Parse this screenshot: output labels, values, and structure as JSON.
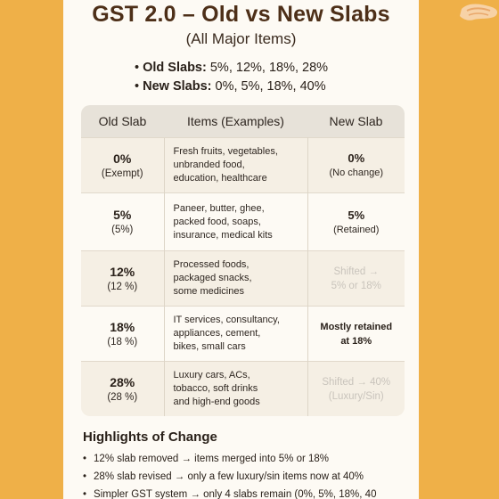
{
  "header": {
    "title": "GST 2.0 – Old vs New Slabs",
    "subtitle": "(All Major Items)"
  },
  "summary": {
    "old_label": "Old Slabs:",
    "old_values": "5%, 12%, 18%, 28%",
    "new_label": "New Slabs:",
    "new_values": "0%, 5%, 18%, 40%"
  },
  "table": {
    "headers": [
      "Old Slab",
      "Items (Examples)",
      "New Slab"
    ],
    "rows": [
      {
        "old_rate": "0%",
        "old_note": "(Exempt)",
        "items": [
          "Fresh fruits, vegetables,",
          "unbranded food,",
          "education, healthcare"
        ],
        "new_main": "0%",
        "new_note": "(No change)"
      },
      {
        "old_rate": "5%",
        "old_note": "(5%)",
        "items": [
          "Paneer, butter, ghee,",
          "packed food, soaps,",
          "insurance, medical kits"
        ],
        "new_main": "5%",
        "new_note": "(Retained)"
      },
      {
        "old_rate": "12%",
        "old_note": "(12 %)",
        "items": [
          "Processed foods,",
          "packaged snacks,",
          "some medicines"
        ],
        "new_line1": "Shifted →",
        "new_line2": "5% or 18%"
      },
      {
        "old_rate": "18%",
        "old_note": "(18 %)",
        "items": [
          "IT services, consultancy,",
          "appliances, cement,",
          "bikes, small cars"
        ],
        "new_line1": "Mostly retained",
        "new_line2": "at 18%"
      },
      {
        "old_rate": "28%",
        "old_note": "(28 %)",
        "items": [
          "Luxury cars, ACs,",
          "tobacco, soft drinks",
          "and high-end goods"
        ],
        "new_line1": "Shifted → 40%",
        "new_line2": "(Luxury/Sin)"
      }
    ]
  },
  "highlights": {
    "title": "Highlights of Change",
    "items": [
      "12% slab removed → items merged into 5% or 18%",
      "28% slab revised → only a few luxury/sin items now at 40%",
      "Simpler GST system → only 4 slabs remain (0%, 5%, 18%, 40"
    ]
  },
  "colors": {
    "background": "#efb048",
    "card": "#fdfaf4",
    "title": "#4d2f18",
    "faded_text": "#c9c4bc"
  }
}
